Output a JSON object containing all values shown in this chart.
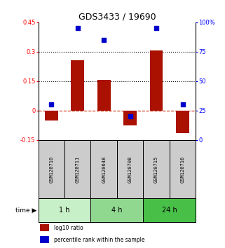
{
  "title": "GDS3433 / 19690",
  "samples": [
    "GSM120710",
    "GSM120711",
    "GSM120648",
    "GSM120708",
    "GSM120715",
    "GSM120716"
  ],
  "log10_ratio": [
    -0.05,
    0.255,
    0.155,
    -0.075,
    0.305,
    -0.115
  ],
  "percentile_rank": [
    30,
    95,
    85,
    20,
    95,
    30
  ],
  "groups": [
    {
      "label": "1 h",
      "start": 0,
      "end": 2,
      "color": "#c8f0c8"
    },
    {
      "label": "4 h",
      "start": 2,
      "end": 4,
      "color": "#90d890"
    },
    {
      "label": "24 h",
      "start": 4,
      "end": 6,
      "color": "#48c048"
    }
  ],
  "bar_color": "#aa1100",
  "dot_color": "#0000cc",
  "left_ylim": [
    -0.15,
    0.45
  ],
  "right_ylim": [
    0,
    100
  ],
  "left_yticks": [
    -0.15,
    0.0,
    0.15,
    0.3,
    0.45
  ],
  "right_yticks": [
    0,
    25,
    50,
    75,
    100
  ],
  "left_ytick_labels": [
    "-0.15",
    "0",
    "0.15",
    "0.3",
    "0.45"
  ],
  "right_ytick_labels": [
    "0",
    "25",
    "50",
    "75",
    "100%"
  ],
  "hlines": [
    0.15,
    0.3
  ],
  "hline_zero_color": "#cc2200",
  "hline_grid_color": "#000000",
  "legend_labels": [
    "log10 ratio",
    "percentile rank within the sample"
  ],
  "time_label": "time"
}
